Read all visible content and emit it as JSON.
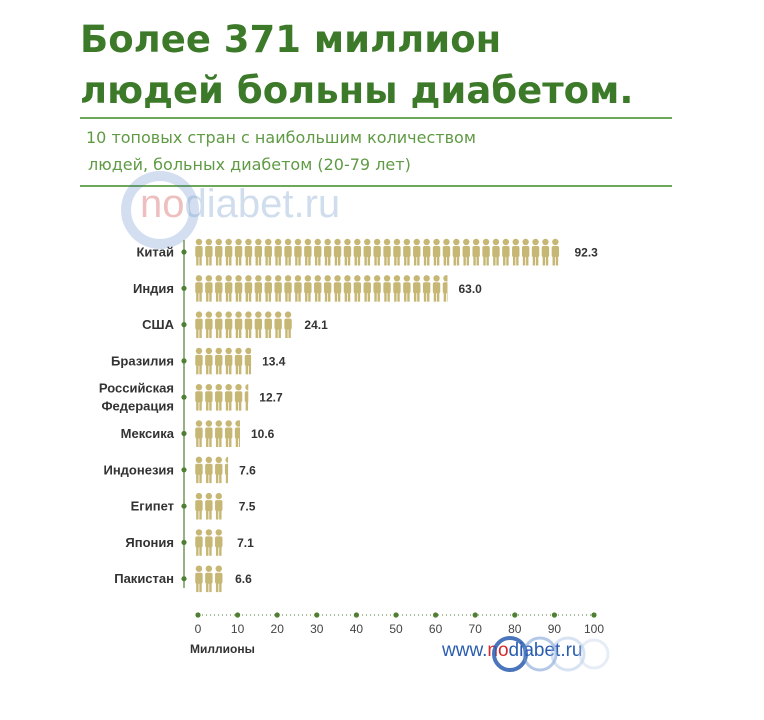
{
  "title_line1": "Более 371 миллион",
  "title_line2": "людей больны диабетом.",
  "subtitle_line1": "10 топовых стран с наибольшим количеством",
  "subtitle_line2": "людей, больных диабетом (20-79 лет)",
  "watermark": {
    "prefix": "no",
    "rest": "diabet.ru"
  },
  "logo": {
    "www": "www.",
    "no": "no",
    "rest": "diabet.ru"
  },
  "colors": {
    "title": "#3c7a2a",
    "figure": "#c7b775",
    "axis": "#4f7f33",
    "rule": "#6fa75a"
  },
  "chart_data": {
    "type": "bar",
    "orientation": "horizontal",
    "categories": [
      "Китай",
      "Индия",
      "США",
      "Бразилия",
      "Российская Федерация",
      "Мексика",
      "Индонезия",
      "Египет",
      "Япония",
      "Пакистан"
    ],
    "values": [
      92.3,
      63.0,
      24.1,
      13.4,
      12.7,
      10.6,
      7.6,
      7.5,
      7.1,
      6.6
    ],
    "value_labels": [
      "92.3",
      "63.0",
      "24.1",
      "13.4",
      "12.7",
      "10.6",
      "7.6",
      "7.5",
      "7.1",
      "6.6"
    ],
    "xlabel": "Миллионы",
    "xlim": [
      0,
      100
    ],
    "xticks": [
      "0",
      "10",
      "20",
      "30",
      "40",
      "50",
      "60",
      "70",
      "80",
      "90",
      "100"
    ],
    "unit_per_figure": 2.5
  }
}
